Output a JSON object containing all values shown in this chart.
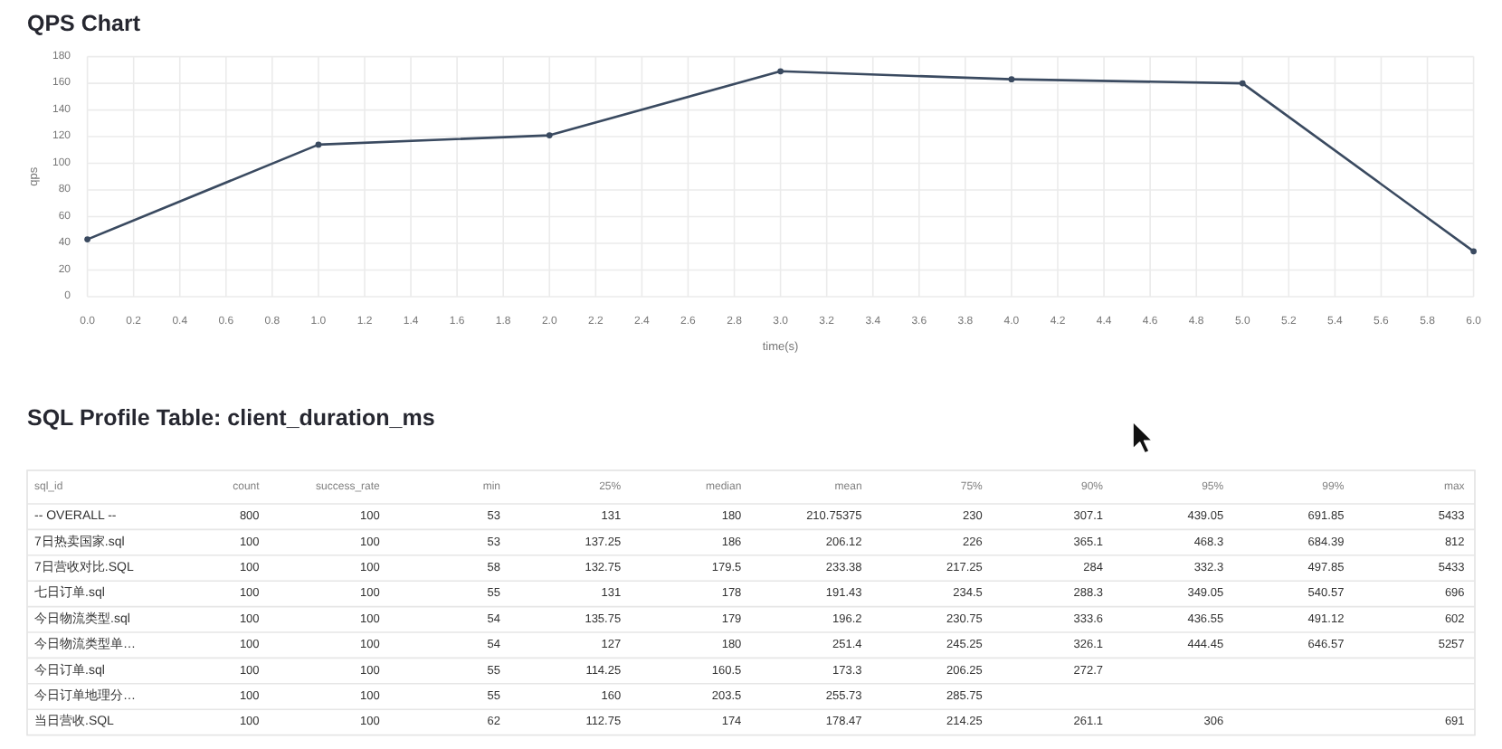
{
  "chart_data": [
    {
      "type": "line",
      "title": "QPS Chart",
      "xlabel": "time(s)",
      "ylabel": "qps",
      "x": [
        0,
        1,
        2,
        3,
        4,
        5,
        6
      ],
      "series": [
        {
          "color": "#3a4a60",
          "values": [
            43,
            114,
            121,
            169,
            163,
            160,
            34
          ]
        }
      ],
      "xlim": [
        0,
        6
      ],
      "ylim": [
        0,
        180
      ],
      "xticks": [
        {
          "value": 0,
          "label": "0.0"
        },
        {
          "value": 0.2,
          "label": "0.2"
        },
        {
          "value": 0.4,
          "label": "0.4"
        },
        {
          "value": 0.6,
          "label": "0.6"
        },
        {
          "value": 0.8,
          "label": "0.8"
        },
        {
          "value": 1,
          "label": "1.0"
        },
        {
          "value": 1.2,
          "label": "1.2"
        },
        {
          "value": 1.4,
          "label": "1.4"
        },
        {
          "value": 1.6,
          "label": "1.6"
        },
        {
          "value": 1.8,
          "label": "1.8"
        },
        {
          "value": 2,
          "label": "2.0"
        },
        {
          "value": 2.2,
          "label": "2.2"
        },
        {
          "value": 2.4,
          "label": "2.4"
        },
        {
          "value": 2.6,
          "label": "2.6"
        },
        {
          "value": 2.8,
          "label": "2.8"
        },
        {
          "value": 3,
          "label": "3.0"
        },
        {
          "value": 3.2,
          "label": "3.2"
        },
        {
          "value": 3.4,
          "label": "3.4"
        },
        {
          "value": 3.6,
          "label": "3.6"
        },
        {
          "value": 3.8,
          "label": "3.8"
        },
        {
          "value": 4,
          "label": "4.0"
        },
        {
          "value": 4.2,
          "label": "4.2"
        },
        {
          "value": 4.4,
          "label": "4.4"
        },
        {
          "value": 4.6,
          "label": "4.6"
        },
        {
          "value": 4.8,
          "label": "4.8"
        },
        {
          "value": 5,
          "label": "5.0"
        },
        {
          "value": 5.2,
          "label": "5.2"
        },
        {
          "value": 5.4,
          "label": "5.4"
        },
        {
          "value": 5.6,
          "label": "5.6"
        },
        {
          "value": 5.8,
          "label": "5.8"
        },
        {
          "value": 6,
          "label": "6.0"
        }
      ],
      "yticks": [
        0,
        20,
        40,
        60,
        80,
        100,
        120,
        140,
        160,
        180
      ],
      "grid": true,
      "marker": "circle"
    },
    {
      "type": "heatmap",
      "title": "SQL Profile Table: client_duration_ms",
      "ylabel": "sql_id",
      "data_labels": true,
      "categories": [
        "count",
        "success_rate",
        "min",
        "25%",
        "median",
        "mean",
        "75%",
        "90%",
        "95%",
        "99%",
        "max"
      ],
      "y_categories": [
        "-- OVERALL --",
        "7日热卖国家.sql",
        "7日营收对比.SQL",
        "七日订单.sql",
        "今日物流类型.sql",
        "今日物流类型单…",
        "今日订单.sql",
        "今日订单地理分…",
        "当日营收.SQL"
      ],
      "cells": [
        [
          800,
          100,
          53,
          131,
          180,
          210.75375,
          230,
          307.1,
          439.05,
          691.85,
          5433
        ],
        [
          100,
          100,
          53,
          137.25,
          186,
          206.12,
          226,
          365.1,
          468.3,
          684.39,
          812
        ],
        [
          100,
          100,
          58,
          132.75,
          179.5,
          233.38,
          217.25,
          284,
          332.3,
          497.85,
          5433
        ],
        [
          100,
          100,
          55,
          131,
          178,
          191.43,
          234.5,
          288.3,
          349.05,
          540.57,
          696
        ],
        [
          100,
          100,
          54,
          135.75,
          179,
          196.2,
          230.75,
          333.6,
          436.55,
          491.12,
          602
        ],
        [
          100,
          100,
          54,
          127,
          180,
          251.4,
          245.25,
          326.1,
          444.45,
          646.57,
          5257
        ],
        [
          100,
          100,
          55,
          114.25,
          160.5,
          173.3,
          206.25,
          272.7,
          null,
          null,
          null
        ],
        [
          100,
          100,
          55,
          160,
          203.5,
          255.73,
          285.75,
          null,
          null,
          null,
          null
        ],
        [
          100,
          100,
          62,
          112.75,
          174,
          178.47,
          214.25,
          261.1,
          306,
          null,
          691
        ]
      ]
    }
  ]
}
